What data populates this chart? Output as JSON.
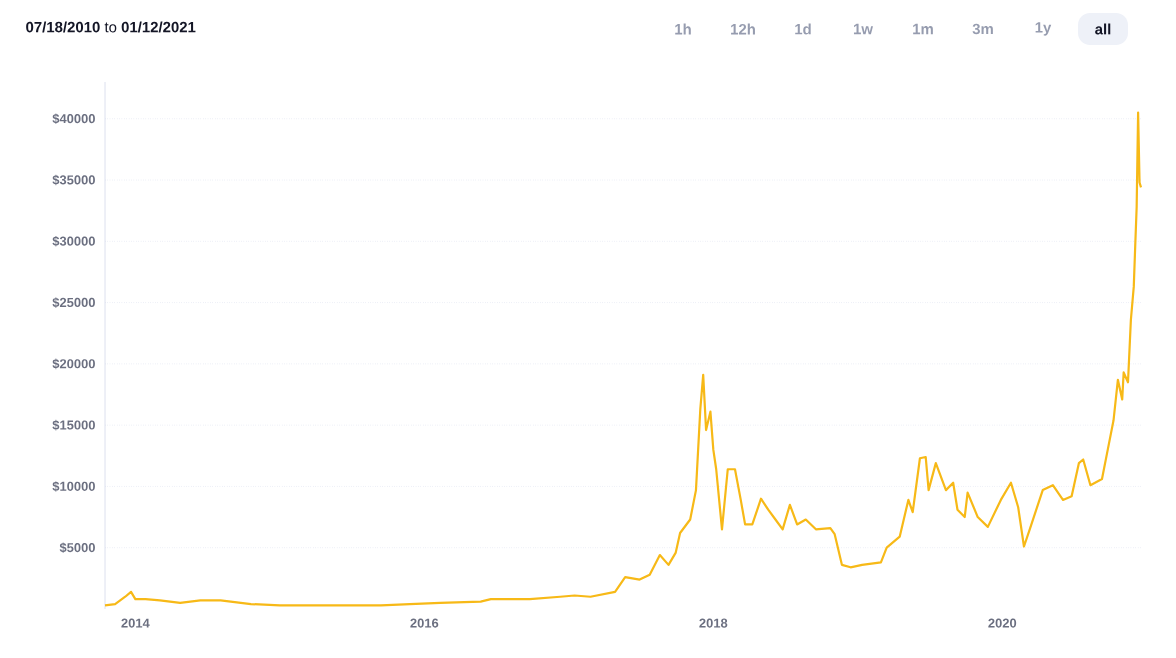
{
  "chart_data": {
    "type": "line",
    "title": "**07/18/2010** to **01/12/2021**",
    "annotations": [
      "1h",
      "12h",
      "1d",
      "1w",
      "1m",
      "3m",
      "1y",
      "all"
    ],
    "x": [
      2013.79,
      2013.86,
      2013.93,
      2013.97,
      2014.0,
      2014.07,
      2014.17,
      2014.31,
      2014.45,
      2014.59,
      2014.8,
      2015.0,
      2015.28,
      2015.7,
      2015.9,
      2016.11,
      2016.39,
      2016.46,
      2016.73,
      2016.94,
      2017.04,
      2017.15,
      2017.32,
      2017.39,
      2017.49,
      2017.56,
      2017.63,
      2017.69,
      2017.74,
      2017.77,
      2017.84,
      2017.88,
      2017.91,
      2017.93,
      2017.95,
      2017.98,
      2018.0,
      2018.02,
      2018.06,
      2018.1,
      2018.15,
      2018.19,
      2018.22,
      2018.27,
      2018.33,
      2018.38,
      2018.43,
      2018.48,
      2018.53,
      2018.58,
      2018.64,
      2018.71,
      2018.81,
      2018.84,
      2018.89,
      2018.95,
      2019.03,
      2019.16,
      2019.2,
      2019.29,
      2019.35,
      2019.38,
      2019.43,
      2019.47,
      2019.49,
      2019.54,
      2019.61,
      2019.66,
      2019.69,
      2019.74,
      2019.76,
      2019.83,
      2019.9,
      2019.99,
      2020.06,
      2020.11,
      2020.15,
      2020.19,
      2020.28,
      2020.35,
      2020.42,
      2020.48,
      2020.53,
      2020.56,
      2020.61,
      2020.69,
      2020.73,
      2020.77,
      2020.8,
      2020.83,
      2020.84,
      2020.87,
      2020.89,
      2020.91,
      2020.92,
      2020.93,
      2020.94,
      2020.95,
      2020.96
    ],
    "series": [
      {
        "color": "#f7b917",
        "values": [
          300,
          400,
          1000,
          1400,
          800,
          800,
          700,
          500,
          700,
          700,
          400,
          300,
          300,
          300,
          400,
          500,
          600,
          800,
          800,
          1000,
          1100,
          1000,
          1400,
          2600,
          2400,
          2800,
          4400,
          3600,
          4600,
          6200,
          7300,
          9700,
          16300,
          19100,
          14600,
          16100,
          13000,
          11400,
          6500,
          11400,
          11400,
          8900,
          6900,
          6900,
          9000,
          8100,
          7300,
          6500,
          8500,
          6900,
          7300,
          6500,
          6600,
          6100,
          3600,
          3400,
          3600,
          3800,
          5000,
          5900,
          8900,
          7900,
          12300,
          12400,
          9700,
          11900,
          9700,
          10300,
          8100,
          7500,
          9500,
          7500,
          6700,
          8900,
          10300,
          8300,
          5100,
          6500,
          9700,
          10100,
          8900,
          9200,
          11900,
          12200,
          10100,
          10600,
          13000,
          15400,
          18700,
          17100,
          19300,
          18500,
          23600,
          26300,
          29600,
          32800,
          40500,
          34800,
          34400
        ]
      }
    ],
    "xlim": [
      2013.79,
      2020.96
    ],
    "ylim": [
      0,
      43000
    ],
    "xticks": [
      2014,
      2016,
      2018,
      2020
    ],
    "yticks": [
      {
        "value": 5000,
        "label": "$5000"
      },
      {
        "value": 10000,
        "label": "$10000"
      },
      {
        "value": 15000,
        "label": "$15000"
      },
      {
        "value": 20000,
        "label": "$20000"
      },
      {
        "value": 25000,
        "label": "$25000"
      },
      {
        "value": 30000,
        "label": "$30000"
      },
      {
        "value": 35000,
        "label": "$35000"
      },
      {
        "value": 40000,
        "label": "$40000"
      }
    ],
    "grid": "y"
  }
}
